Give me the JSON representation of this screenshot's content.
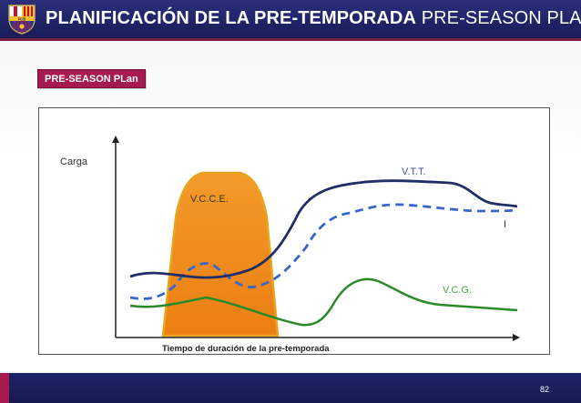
{
  "header": {
    "title_bold": "PLANIFICACIÓN DE LA PRE-TEMPORADA",
    "title_normal": "PRE-SEASON PLAN",
    "crest_letters": "FCB"
  },
  "section_label": "PRE-SEASON PLan",
  "diagram": {
    "y_axis_label": "Carga",
    "x_axis_label": "Tiempo de duración de la pre-temporada",
    "labels": {
      "vcce": "V.C.C.E.",
      "vtt": "V.T.T.",
      "vcg": "V.C.G.",
      "i_mark": "I"
    },
    "colors": {
      "vcce_fill": "#f28c1e",
      "vcce_stroke": "#e59a1a",
      "vtt": "#1f2f66",
      "dashed": "#3a66c9",
      "vcg": "#2a8a2a",
      "vcg_label": "#4aa84a",
      "vtt_label": "#3a4fa0"
    }
  },
  "footer": {
    "page_number": "82"
  }
}
